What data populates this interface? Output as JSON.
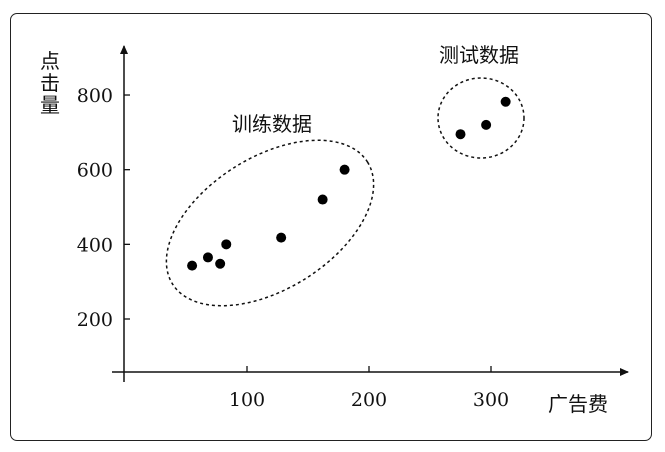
{
  "chart_data": {
    "type": "scatter",
    "xlabel": "广告费",
    "ylabel": "点击量",
    "xticks": [
      100,
      200,
      300
    ],
    "yticks": [
      200,
      400,
      600,
      800
    ],
    "series": [
      {
        "name": "训练数据",
        "points": [
          [
            55,
            343
          ],
          [
            68,
            365
          ],
          [
            78,
            348
          ],
          [
            83,
            400
          ],
          [
            128,
            418
          ],
          [
            162,
            520
          ],
          [
            180,
            600
          ]
        ]
      },
      {
        "name": "测试数据",
        "points": [
          [
            275,
            695
          ],
          [
            296,
            720
          ],
          [
            312,
            782
          ]
        ]
      }
    ],
    "grid": false
  }
}
